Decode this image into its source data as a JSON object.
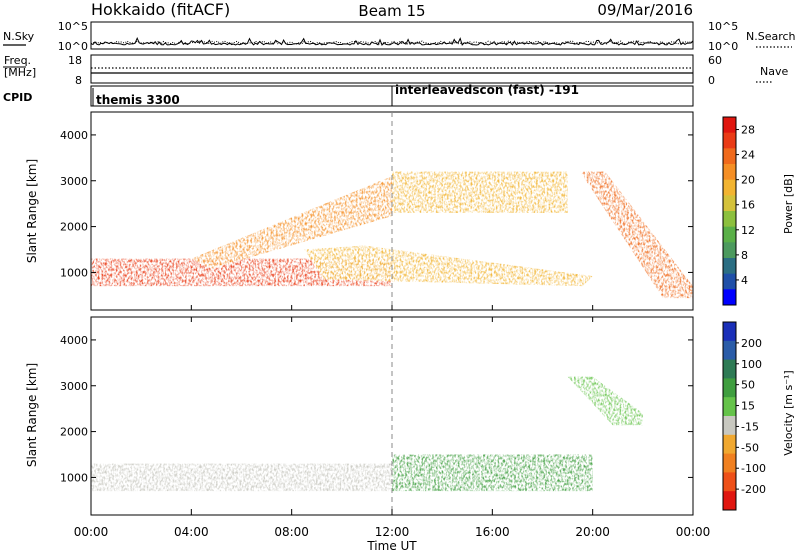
{
  "header": {
    "station": "Hokkaido (fitACF)",
    "beam": "Beam 15",
    "date": "09/Mar/2016"
  },
  "noise_panel": {
    "left_label": "N.Sky",
    "right_label": "N.Search",
    "left_ticks": [
      "10^5",
      "10^0"
    ],
    "right_ticks": [
      "10^5",
      "10^0"
    ],
    "right_legend_style": "dotted"
  },
  "freq_panel": {
    "left_label_line1": "Freq.",
    "left_label_line2": "[MHz]",
    "right_label": "Nave",
    "left_ticks": [
      "18",
      "8"
    ],
    "right_ticks": [
      "60",
      "0"
    ],
    "right_legend_style": "dotted"
  },
  "cpid_panel": {
    "label": "CPID",
    "segments": [
      {
        "start_hour": 0,
        "text": "themis 3300"
      },
      {
        "start_hour": 12,
        "text": "interleavedscon (fast) -191"
      }
    ]
  },
  "time_axis": {
    "label": "Time UT",
    "ticks": [
      "00:00",
      "04:00",
      "08:00",
      "12:00",
      "16:00",
      "20:00",
      "00:00"
    ],
    "range_hours": [
      0,
      24
    ]
  },
  "chart_data": [
    {
      "type": "heatmap",
      "name": "power",
      "ylabel": "Slant Range [km]",
      "yticks": [
        "1000",
        "2000",
        "3000",
        "4000"
      ],
      "ylim": [
        180,
        4500
      ],
      "colorbar_label": "Power [dB]",
      "colorbar_ticks": [
        "4",
        "8",
        "12",
        "16",
        "20",
        "24",
        "28"
      ],
      "colorbar_range": [
        0,
        30
      ],
      "colors": [
        "#0000ff",
        "#1f4fa8",
        "#2b6e83",
        "#4c9a5e",
        "#5ab048",
        "#8cc03e",
        "#d4c23b",
        "#f2b431",
        "#f58f25",
        "#f06a1c",
        "#ea3b16",
        "#e0160f"
      ],
      "features": [
        {
          "name": "main near-range band",
          "time_hours": [
            0,
            12
          ],
          "range_km": [
            700,
            1300
          ],
          "power_db": 28
        },
        {
          "name": "rising echo streaks",
          "time_hours": [
            4,
            12
          ],
          "range_km": [
            1300,
            3100
          ],
          "power_db": 22
        },
        {
          "name": "midday descending band",
          "time_hours": [
            8.5,
            20
          ],
          "range_km": [
            700,
            1500
          ],
          "power_db": 20
        },
        {
          "name": "upper patchy echoes",
          "time_hours": [
            12,
            19
          ],
          "range_km": [
            2300,
            3200
          ],
          "power_db": 18
        },
        {
          "name": "evening diagonal",
          "time_hours": [
            19.5,
            24
          ],
          "range_km": [
            700,
            3200
          ],
          "power_db": 24
        }
      ]
    },
    {
      "type": "heatmap",
      "name": "velocity",
      "ylabel": "Slant Range [km]",
      "yticks": [
        "1000",
        "2000",
        "3000",
        "4000"
      ],
      "ylim": [
        180,
        4500
      ],
      "colorbar_label": "Velocity [m s⁻¹]",
      "colorbar_ticks": [
        "200",
        "100",
        "50",
        "15",
        "-15",
        "-50",
        "-100",
        "-200"
      ],
      "colorbar_range": [
        -250,
        250
      ],
      "colors": [
        "#1a2fb8",
        "#2a5ca8",
        "#2e7b55",
        "#3f9e3f",
        "#65c34a",
        "#c8c8c0",
        "#f0a830",
        "#f08020",
        "#ee5018",
        "#e0160f"
      ],
      "features": [
        {
          "name": "ground-scatter band (near zero)",
          "time_hours": [
            0,
            12
          ],
          "range_km": [
            700,
            1300
          ],
          "velocity_ms": 0
        },
        {
          "name": "midday positive band",
          "time_hours": [
            12,
            20
          ],
          "range_km": [
            700,
            1500
          ],
          "velocity_ms": 60
        },
        {
          "name": "evening diagonal (positive)",
          "time_hours": [
            19,
            22
          ],
          "range_km": [
            2400,
            3200
          ],
          "velocity_ms": 40
        }
      ]
    }
  ]
}
